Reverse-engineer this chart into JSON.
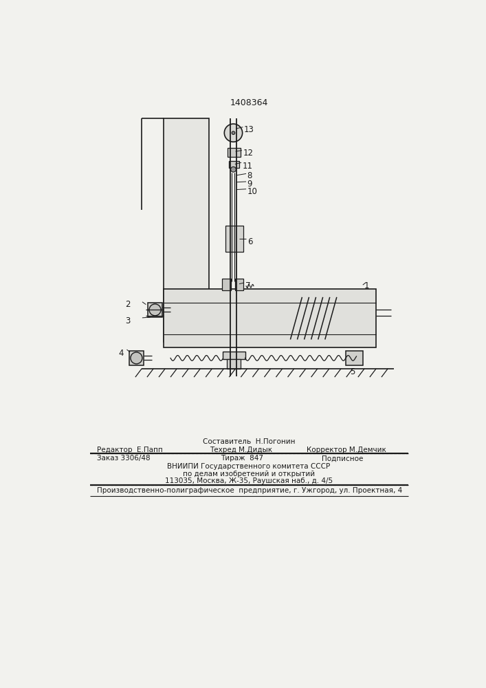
{
  "patent_number": "1408364",
  "bg_color": "#f2f2ee",
  "line_color": "#1a1a1a",
  "text_color": "#1a1a1a",
  "footer": {
    "row1_center_top": "Составитель  Н.Погонин",
    "row1_left": "Редактор  Е.Папп",
    "row1_center_bot": "Техред М.Дидык",
    "row1_right": "Корректор М.Демчик",
    "row2_left": "Заказ 3306/48",
    "row2_center": "Тираж  847",
    "row2_right": "Подписное",
    "row3": "ВНИИПИ Государственного комитета СССР",
    "row4": "по делам изобретений и открытий",
    "row5": "113035, Москва, Ж-35, Раушская наб., д. 4/5",
    "row6": "Производственно-полиграфическое  предприятие, г. Ужгород, ул. Проектная, 4"
  }
}
